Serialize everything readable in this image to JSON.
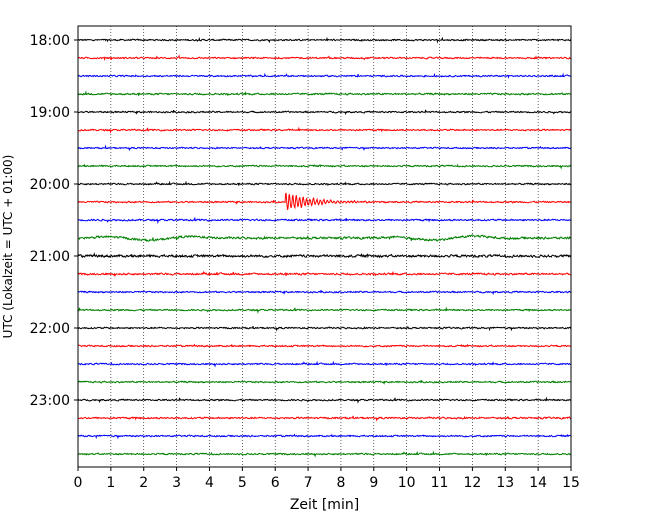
{
  "chart_data": {
    "type": "line",
    "title": "",
    "xlabel": "Zeit  [min]",
    "ylabel": "UTC (Lokalzeit = UTC + 01:00)",
    "xlim": [
      0,
      15
    ],
    "x_ticks": [
      "0",
      "1",
      "2",
      "3",
      "4",
      "5",
      "6",
      "7",
      "8",
      "9",
      "10",
      "11",
      "12",
      "13",
      "14",
      "15"
    ],
    "y_ticks": [
      "18:00",
      "19:00",
      "20:00",
      "21:00",
      "22:00",
      "23:00"
    ],
    "grid": "vertical dotted",
    "colors": [
      "#000000",
      "#ff0000",
      "#0000ff",
      "#008000"
    ],
    "series": [
      {
        "start": "18:00",
        "color": "#000000",
        "amplitude": 1.0
      },
      {
        "start": "18:15",
        "color": "#ff0000",
        "amplitude": 1.0
      },
      {
        "start": "18:30",
        "color": "#0000ff",
        "amplitude": 1.0
      },
      {
        "start": "18:45",
        "color": "#008000",
        "amplitude": 1.1
      },
      {
        "start": "19:00",
        "color": "#000000",
        "amplitude": 1.0
      },
      {
        "start": "19:15",
        "color": "#ff0000",
        "amplitude": 1.0
      },
      {
        "start": "19:30",
        "color": "#0000ff",
        "amplitude": 0.9
      },
      {
        "start": "19:45",
        "color": "#008000",
        "amplitude": 1.0
      },
      {
        "start": "20:00",
        "color": "#000000",
        "amplitude": 1.0
      },
      {
        "start": "20:15",
        "color": "#ff0000",
        "amplitude": 1.0,
        "event": {
          "minute": 6.3,
          "peak": 11,
          "duration_min": 3.2
        }
      },
      {
        "start": "20:30",
        "color": "#0000ff",
        "amplitude": 1.1
      },
      {
        "start": "20:45",
        "color": "#008000",
        "amplitude": 1.4,
        "swell": true
      },
      {
        "start": "21:00",
        "color": "#000000",
        "amplitude": 1.6
      },
      {
        "start": "21:15",
        "color": "#ff0000",
        "amplitude": 1.2
      },
      {
        "start": "21:30",
        "color": "#0000ff",
        "amplitude": 1.0
      },
      {
        "start": "21:45",
        "color": "#008000",
        "amplitude": 1.0
      },
      {
        "start": "22:00",
        "color": "#000000",
        "amplitude": 1.0
      },
      {
        "start": "22:15",
        "color": "#ff0000",
        "amplitude": 1.0
      },
      {
        "start": "22:30",
        "color": "#0000ff",
        "amplitude": 1.0
      },
      {
        "start": "22:45",
        "color": "#008000",
        "amplitude": 1.0
      },
      {
        "start": "23:00",
        "color": "#000000",
        "amplitude": 1.0
      },
      {
        "start": "23:15",
        "color": "#ff0000",
        "amplitude": 1.1
      },
      {
        "start": "23:30",
        "color": "#0000ff",
        "amplitude": 1.0
      },
      {
        "start": "23:45",
        "color": "#008000",
        "amplitude": 1.0
      }
    ]
  }
}
